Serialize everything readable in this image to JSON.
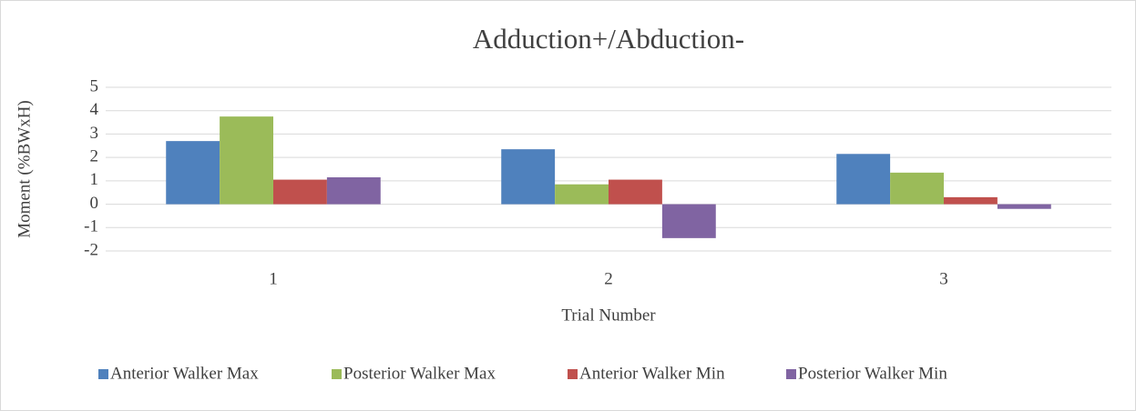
{
  "chart_data": {
    "type": "bar",
    "title": "Adduction+/Abduction-",
    "x_label": "Trial Number",
    "y_label": "Moment (%BWxH)",
    "categories": [
      "1",
      "2",
      "3"
    ],
    "series": [
      {
        "name": "Anterior Walker Max",
        "color": "#4f81bd",
        "values": [
          2.7,
          2.35,
          2.15
        ]
      },
      {
        "name": "Posterior Walker Max",
        "color": "#9bbb59",
        "values": [
          3.75,
          0.85,
          1.35
        ]
      },
      {
        "name": "Anterior Walker Min",
        "color": "#c0504d",
        "values": [
          1.05,
          1.05,
          0.3
        ]
      },
      {
        "name": "Posterior Walker Min",
        "color": "#8064a2",
        "values": [
          1.15,
          -1.45,
          -0.2
        ]
      }
    ],
    "ylim": [
      -2,
      5
    ],
    "yticks": [
      -2,
      -1,
      0,
      1,
      2,
      3,
      4,
      5
    ],
    "grid": true,
    "legend": "bottom"
  }
}
